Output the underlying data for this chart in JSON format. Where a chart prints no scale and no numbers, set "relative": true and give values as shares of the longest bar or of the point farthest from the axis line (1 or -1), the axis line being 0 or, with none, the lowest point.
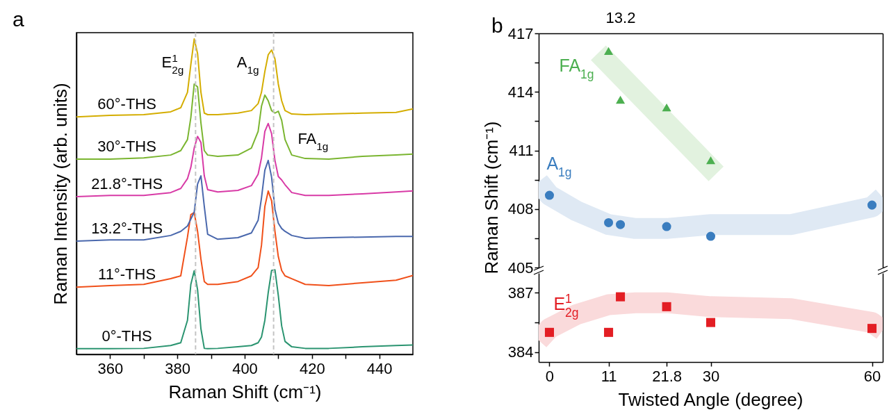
{
  "chart_data": [
    {
      "type": "line",
      "title": "a",
      "xlabel": "Raman Shift (cm⁻¹)",
      "ylabel": "Raman Intensity (arb. units)",
      "relative": true,
      "xlim": [
        350,
        450
      ],
      "xticks": [
        360,
        {
          "value": 370,
          "label": null
        },
        380,
        {
          "value": 390,
          "label": null
        },
        400,
        {
          "value": 410,
          "label": null
        },
        420,
        {
          "value": 430,
          "label": null
        },
        440
      ],
      "x": [
        350,
        360,
        370,
        378,
        381,
        383,
        384,
        385,
        386,
        387,
        388,
        389,
        392,
        398,
        402,
        404,
        405,
        406,
        407,
        408,
        409,
        410,
        411,
        412,
        414,
        418,
        425,
        435,
        445,
        450
      ],
      "series": [
        {
          "name": "0°-THS",
          "color": "#2a9470",
          "values": [
            0.018,
            0.018,
            0.019,
            0.028,
            0.037,
            0.108,
            0.222,
            0.265,
            0.205,
            0.081,
            0.019,
            0.018,
            0.019,
            0.024,
            0.028,
            0.037,
            0.055,
            0.108,
            0.196,
            0.266,
            0.268,
            0.187,
            0.09,
            0.041,
            0.024,
            0.019,
            0.019,
            0.024,
            0.028,
            0.03
          ]
        },
        {
          "name": "11°-THS",
          "color": "#f0501a",
          "values": [
            0.213,
            0.218,
            0.222,
            0.24,
            0.249,
            0.372,
            0.443,
            0.45,
            0.39,
            0.302,
            0.231,
            0.222,
            0.222,
            0.231,
            0.249,
            0.275,
            0.346,
            0.469,
            0.518,
            0.487,
            0.39,
            0.31,
            0.266,
            0.249,
            0.24,
            0.222,
            0.218,
            0.227,
            0.235,
            0.25
          ]
        },
        {
          "name": "13.2°-THS",
          "color": "#4a68ad",
          "values": [
            0.359,
            0.363,
            0.363,
            0.377,
            0.39,
            0.407,
            0.429,
            0.451,
            0.54,
            0.566,
            0.469,
            0.381,
            0.365,
            0.37,
            0.385,
            0.425,
            0.496,
            0.584,
            0.615,
            0.562,
            0.46,
            0.416,
            0.399,
            0.39,
            0.377,
            0.368,
            0.37,
            0.372,
            0.374,
            0.374
          ]
        },
        {
          "name": "21.8°-THS",
          "color": "#d83aa6",
          "values": [
            0.5,
            0.504,
            0.504,
            0.513,
            0.526,
            0.557,
            0.593,
            0.654,
            0.691,
            0.672,
            0.566,
            0.522,
            0.515,
            0.52,
            0.535,
            0.571,
            0.623,
            0.707,
            0.732,
            0.7,
            0.615,
            0.564,
            0.553,
            0.538,
            0.513,
            0.504,
            0.504,
            0.509,
            0.515,
            0.518
          ]
        },
        {
          "name": "30°-THS",
          "color": "#7ab530",
          "values": [
            0.619,
            0.619,
            0.623,
            0.632,
            0.646,
            0.681,
            0.751,
            0.857,
            0.848,
            0.734,
            0.646,
            0.632,
            0.628,
            0.632,
            0.654,
            0.707,
            0.787,
            0.822,
            0.804,
            0.773,
            0.765,
            0.771,
            0.742,
            0.681,
            0.632,
            0.621,
            0.619,
            0.628,
            0.632,
            0.635
          ]
        },
        {
          "name": "60°-THS",
          "color": "#d4ad00",
          "values": [
            0.753,
            0.758,
            0.76,
            0.769,
            0.782,
            0.831,
            0.919,
            1,
            0.954,
            0.831,
            0.765,
            0.76,
            0.76,
            0.765,
            0.773,
            0.795,
            0.831,
            0.897,
            0.95,
            0.965,
            0.937,
            0.857,
            0.804,
            0.773,
            0.762,
            0.76,
            0.762,
            0.765,
            0.767,
            0.778
          ]
        }
      ],
      "annotations": [
        {
          "text": "E$^{1}$$_{2g}$",
          "x": 385,
          "y": 1
        },
        {
          "text": "A$_{1g}$",
          "x": 408,
          "y": 0.965
        },
        {
          "text": "FA$_{1g}$",
          "x": 410,
          "y": 0.771
        }
      ],
      "ref_lines": [
        {
          "axis": "x",
          "value": 385.4,
          "color": "#c4c4c4",
          "line_style": "dashed"
        },
        {
          "axis": "x",
          "value": 408.6,
          "color": "#c4c4c4",
          "line_style": "dashed"
        }
      ]
    },
    {
      "type": "scatter",
      "title": "b",
      "ylabel": "Raman Shift (cm⁻¹)",
      "xlim": [
        -2,
        62
      ],
      "annotations": [
        "13.2"
      ],
      "ylim": [
        405,
        417
      ],
      "yticks": [
        405,
        {
          "value": 406.5,
          "label": null
        },
        408,
        {
          "value": 409.5,
          "label": null
        },
        411,
        {
          "value": 412.5,
          "label": null
        },
        414,
        {
          "value": 415.5,
          "label": null
        },
        417
      ],
      "series": [
        {
          "type": "line",
          "color": "#e2f2df",
          "x": [
            9.1,
            31
          ],
          "values": [
            416,
            409.8
          ]
        },
        {
          "name": "FA$_{1g}$",
          "color": "#4caf50",
          "marker": "triangle",
          "x": [
            11,
            13.2,
            21.8,
            30
          ],
          "values": [
            416.1,
            413.6,
            413.2,
            410.5
          ]
        },
        {
          "type": "line",
          "color": "#dfe9f4",
          "x": [
            -2,
            0,
            5,
            11,
            16,
            21.8,
            30,
            45,
            60,
            62
          ],
          "values": [
            409.4,
            408.7,
            407.9,
            407.2,
            407,
            407,
            407.2,
            407.2,
            408.1,
            408.6
          ]
        },
        {
          "name": "A$_{1g}$",
          "color": "#3a7dbf",
          "marker": "circle",
          "x": [
            0,
            11,
            13.2,
            21.8,
            30,
            60
          ],
          "values": [
            408.7,
            407.3,
            407.2,
            407.1,
            406.6,
            408.2
          ]
        }
      ]
    },
    {
      "type": "scatter",
      "xlabel": "Twisted Angle (degree)",
      "xlim": [
        -2,
        62
      ],
      "xticks": [
        0,
        11,
        21.8,
        30,
        60
      ],
      "ylim": [
        383.5,
        388
      ],
      "yticks": [
        384,
        {
          "value": 385.5,
          "label": null
        },
        387
      ],
      "series": [
        {
          "type": "line",
          "color": "#fadadb",
          "x": [
            -2,
            0,
            5,
            11,
            16,
            21.8,
            30,
            45,
            60,
            62
          ],
          "values": [
            384.6,
            385.2,
            385.9,
            386.4,
            386.5,
            386.5,
            386.3,
            386.2,
            385.5,
            385.1
          ]
        },
        {
          "name": "E$^{1}$$_{2g}$",
          "color": "#e31e24",
          "marker": "square",
          "x": [
            0,
            11,
            13.2,
            21.8,
            30,
            60
          ],
          "values": [
            385,
            385,
            386.8,
            386.3,
            385.5,
            385.2
          ]
        }
      ]
    }
  ]
}
